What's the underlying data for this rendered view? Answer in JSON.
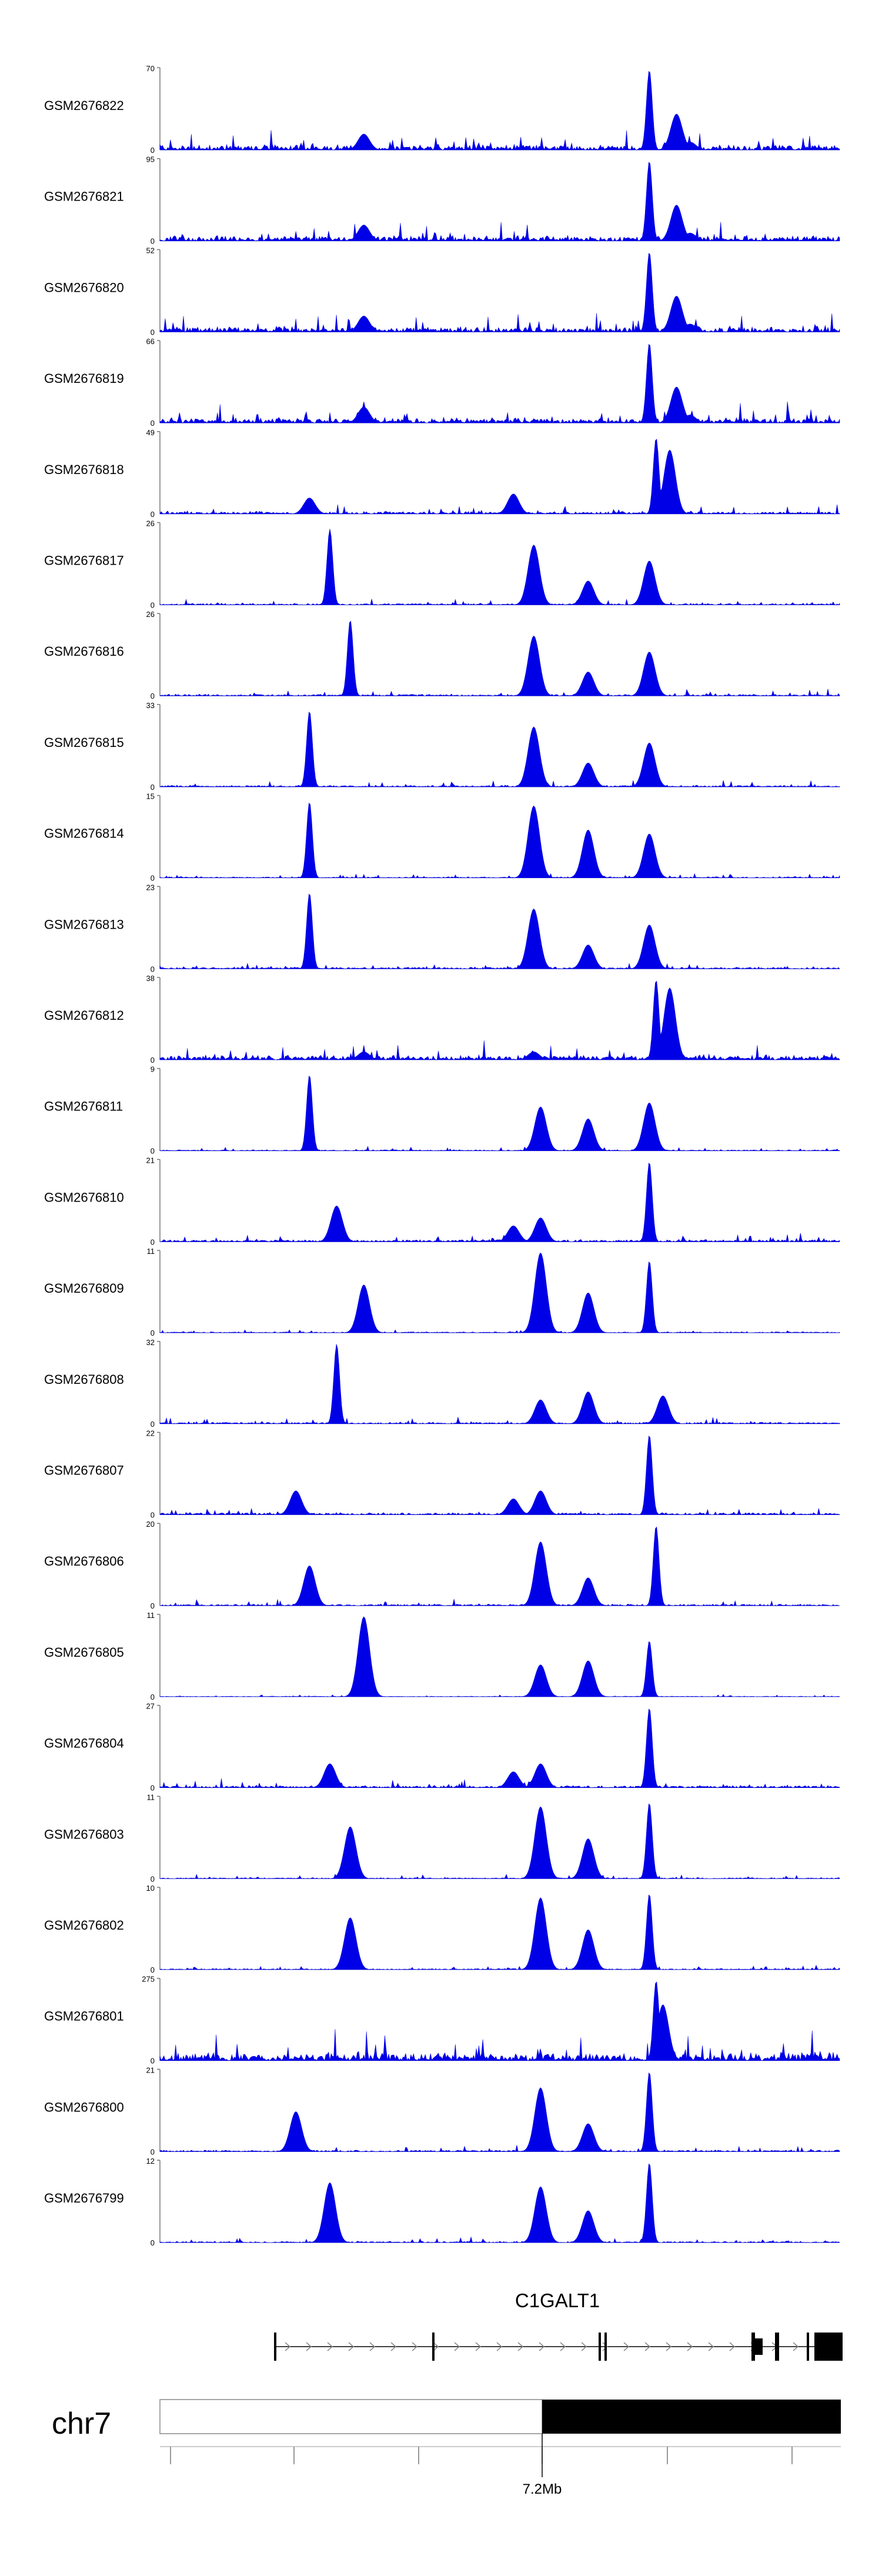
{
  "chart_data": {
    "type": "area",
    "title": "",
    "chromosome": "chr7",
    "region_label": "7.2Mb",
    "gene": {
      "name": "C1GALT1",
      "strand": "+"
    },
    "tracks": [
      {
        "name": "GSM2676822",
        "ymax": 70,
        "peaks": [
          [
            0.4,
            10
          ],
          [
            0.72,
            1
          ],
          [
            0.76,
            0.45
          ],
          [
            0.78,
            0.1
          ],
          [
            0.3,
            0.2
          ]
        ]
      },
      {
        "name": "GSM2676821",
        "ymax": 95,
        "peaks": [
          [
            0.4,
            10
          ],
          [
            0.72,
            1
          ],
          [
            0.76,
            0.45
          ],
          [
            0.78,
            0.1
          ],
          [
            0.3,
            0.2
          ]
        ]
      },
      {
        "name": "GSM2676820",
        "ymax": 52,
        "peaks": [
          [
            0.4,
            10
          ],
          [
            0.72,
            1
          ],
          [
            0.76,
            0.45
          ],
          [
            0.78,
            0.1
          ],
          [
            0.3,
            0.2
          ]
        ]
      },
      {
        "name": "GSM2676819",
        "ymax": 66,
        "peaks": [
          [
            0.4,
            10
          ],
          [
            0.72,
            1
          ],
          [
            0.76,
            0.45
          ],
          [
            0.78,
            0.1
          ],
          [
            0.3,
            0.2
          ]
        ]
      },
      {
        "name": "GSM2676818",
        "ymax": 49,
        "peaks": [
          [
            0.45,
            5
          ],
          [
            0.73,
            0.95
          ],
          [
            0.75,
            0.8
          ],
          [
            0.52,
            0.25
          ],
          [
            0.22,
            0.2
          ]
        ]
      },
      {
        "name": "GSM2676817",
        "ymax": 26,
        "peaks": [
          [
            0.35,
            3
          ],
          [
            0.25,
            0.95
          ],
          [
            0.72,
            0.55
          ],
          [
            0.55,
            0.75
          ],
          [
            0.63,
            0.3
          ]
        ]
      },
      {
        "name": "GSM2676816",
        "ymax": 26,
        "peaks": [
          [
            0.35,
            3
          ],
          [
            0.28,
            0.95
          ],
          [
            0.72,
            0.55
          ],
          [
            0.55,
            0.75
          ],
          [
            0.63,
            0.3
          ]
        ]
      },
      {
        "name": "GSM2676815",
        "ymax": 33,
        "peaks": [
          [
            0.35,
            3
          ],
          [
            0.22,
            0.95
          ],
          [
            0.72,
            0.55
          ],
          [
            0.55,
            0.75
          ],
          [
            0.63,
            0.3
          ]
        ]
      },
      {
        "name": "GSM2676814",
        "ymax": 15,
        "peaks": [
          [
            0.55,
            2
          ],
          [
            0.22,
            0.95
          ],
          [
            0.72,
            0.55
          ],
          [
            0.55,
            0.9
          ],
          [
            0.63,
            0.6
          ]
        ]
      },
      {
        "name": "GSM2676813",
        "ymax": 23,
        "peaks": [
          [
            0.35,
            3
          ],
          [
            0.22,
            0.95
          ],
          [
            0.72,
            0.55
          ],
          [
            0.55,
            0.75
          ],
          [
            0.63,
            0.3
          ]
        ]
      },
      {
        "name": "GSM2676812",
        "ymax": 38,
        "peaks": [
          [
            0.3,
            9
          ],
          [
            0.73,
            1
          ],
          [
            0.75,
            0.9
          ],
          [
            0.55,
            0.1
          ],
          [
            0.3,
            0.1
          ]
        ]
      },
      {
        "name": "GSM2676811",
        "ymax": 9,
        "peaks": [
          [
            0.5,
            2
          ],
          [
            0.22,
            0.95
          ],
          [
            0.72,
            0.6
          ],
          [
            0.56,
            0.55
          ],
          [
            0.63,
            0.4
          ]
        ]
      },
      {
        "name": "GSM2676810",
        "ymax": 21,
        "peaks": [
          [
            0.4,
            4
          ],
          [
            0.72,
            1
          ],
          [
            0.56,
            0.3
          ],
          [
            0.26,
            0.45
          ],
          [
            0.52,
            0.2
          ]
        ]
      },
      {
        "name": "GSM2676809",
        "ymax": 11,
        "peaks": [
          [
            0.55,
            2
          ],
          [
            0.72,
            0.9
          ],
          [
            0.56,
            1
          ],
          [
            0.3,
            0.6
          ],
          [
            0.63,
            0.5
          ]
        ]
      },
      {
        "name": "GSM2676808",
        "ymax": 32,
        "peaks": [
          [
            0.35,
            3
          ],
          [
            0.26,
            1
          ],
          [
            0.74,
            0.35
          ],
          [
            0.56,
            0.3
          ],
          [
            0.63,
            0.4
          ]
        ]
      },
      {
        "name": "GSM2676807",
        "ymax": 22,
        "peaks": [
          [
            0.4,
            4
          ],
          [
            0.72,
            1
          ],
          [
            0.56,
            0.3
          ],
          [
            0.2,
            0.3
          ],
          [
            0.52,
            0.2
          ]
        ]
      },
      {
        "name": "GSM2676806",
        "ymax": 20,
        "peaks": [
          [
            0.45,
            3
          ],
          [
            0.73,
            1
          ],
          [
            0.56,
            0.8
          ],
          [
            0.22,
            0.5
          ],
          [
            0.63,
            0.35
          ]
        ]
      },
      {
        "name": "GSM2676805",
        "ymax": 11,
        "peaks": [
          [
            0.8,
            1
          ],
          [
            0.72,
            0.7
          ],
          [
            0.3,
            1
          ],
          [
            0.56,
            0.4
          ],
          [
            0.63,
            0.45
          ]
        ]
      },
      {
        "name": "GSM2676804",
        "ymax": 27,
        "peaks": [
          [
            0.4,
            4
          ],
          [
            0.72,
            1
          ],
          [
            0.56,
            0.3
          ],
          [
            0.25,
            0.3
          ],
          [
            0.52,
            0.2
          ]
        ]
      },
      {
        "name": "GSM2676803",
        "ymax": 11,
        "peaks": [
          [
            0.55,
            2
          ],
          [
            0.72,
            0.95
          ],
          [
            0.56,
            0.9
          ],
          [
            0.28,
            0.65
          ],
          [
            0.63,
            0.5
          ]
        ]
      },
      {
        "name": "GSM2676802",
        "ymax": 10,
        "peaks": [
          [
            0.55,
            2
          ],
          [
            0.72,
            0.95
          ],
          [
            0.56,
            0.9
          ],
          [
            0.28,
            0.65
          ],
          [
            0.63,
            0.5
          ]
        ]
      },
      {
        "name": "GSM2676801",
        "ymax": 275,
        "peaks": [
          [
            0.15,
            15
          ],
          [
            0.73,
            1
          ],
          [
            0.74,
            0.7
          ],
          [
            0.5,
            0.01
          ],
          [
            0.3,
            0.01
          ]
        ]
      },
      {
        "name": "GSM2676800",
        "ymax": 21,
        "peaks": [
          [
            0.45,
            3
          ],
          [
            0.72,
            1
          ],
          [
            0.56,
            0.8
          ],
          [
            0.2,
            0.5
          ],
          [
            0.63,
            0.35
          ]
        ]
      },
      {
        "name": "GSM2676799",
        "ymax": 12,
        "peaks": [
          [
            0.5,
            2.5
          ],
          [
            0.72,
            1
          ],
          [
            0.56,
            0.7
          ],
          [
            0.25,
            0.75
          ],
          [
            0.63,
            0.4
          ]
        ]
      }
    ]
  }
}
